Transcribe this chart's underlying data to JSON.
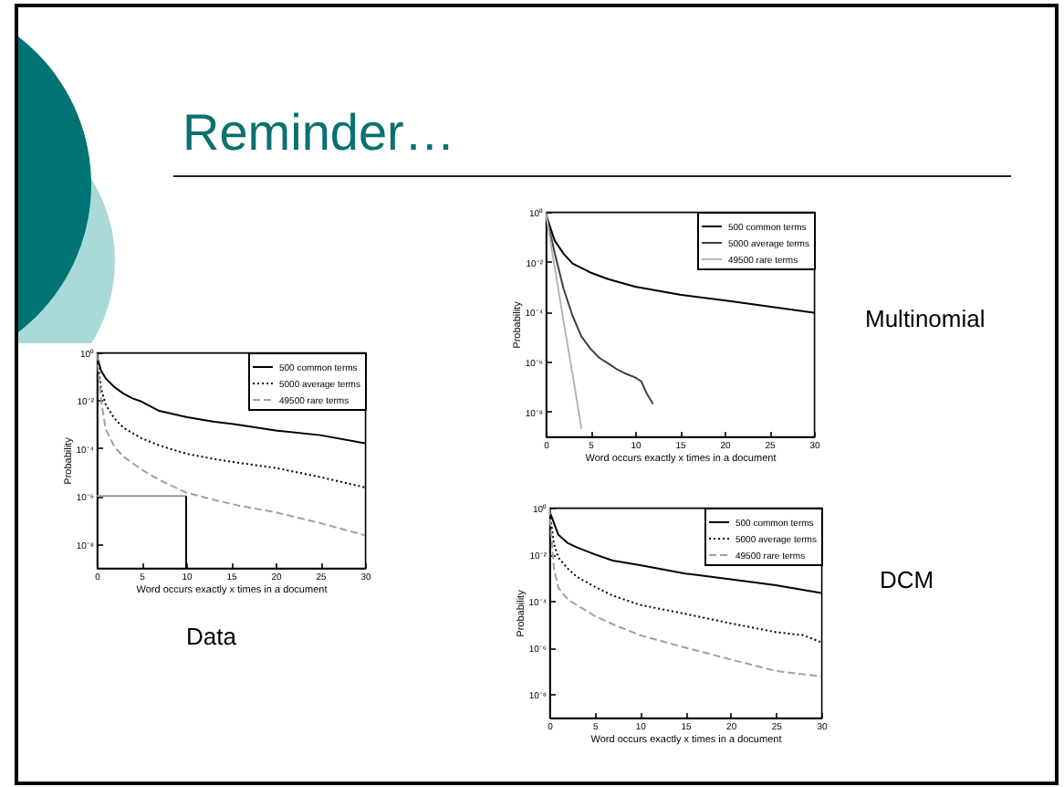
{
  "chart_data": [
    {
      "type": "other",
      "title": "Reminder…"
    },
    {
      "type": "line",
      "title": "Data",
      "xlabel": "Word occurs exactly x times in a document",
      "ylabel": "Probability",
      "log": "y",
      "legend": "top right",
      "xlim": [
        0,
        30
      ],
      "xticks": [
        0,
        5,
        10,
        15,
        20,
        25,
        30
      ],
      "ylim": [
        1e-09,
        1
      ],
      "yticks": [
        {
          "value": 1,
          "label": "10⁰"
        },
        {
          "value": 0.01,
          "label": "10⁻²"
        },
        {
          "value": 0.0001,
          "label": "10⁻⁴"
        },
        {
          "value": 1e-06,
          "label": "10⁻⁶"
        },
        {
          "value": 1e-08,
          "label": "10⁻⁸"
        }
      ],
      "series": [
        {
          "name": "500 common terms",
          "color": "#000000",
          "line_style": "solid",
          "x": [
            0,
            0.5,
            1,
            2,
            3,
            4,
            5,
            7,
            10,
            13,
            16,
            20,
            25,
            30
          ],
          "values": [
            0.74,
            0.17,
            0.083,
            0.035,
            0.019,
            0.012,
            0.0089,
            0.0036,
            0.002,
            0.0013,
            0.00093,
            0.00055,
            0.00035,
            0.00016
          ]
        },
        {
          "name": "5000 average terms",
          "color": "#000000",
          "line_style": "dotted",
          "x": [
            0,
            0.5,
            1,
            2,
            3,
            5,
            7,
            10,
            13,
            16,
            20,
            25,
            30
          ],
          "values": [
            0.85,
            0.029,
            0.0066,
            0.0017,
            0.00071,
            0.00026,
            0.00013,
            5.9e-05,
            3.6e-05,
            2.4e-05,
            1.5e-05,
            6.2e-06,
            2.3e-06
          ]
        },
        {
          "name": "49500 rare terms",
          "color": "#a0a0a0",
          "line_style": "dashed",
          "x": [
            0,
            0.5,
            1,
            2,
            3,
            5,
            7,
            10,
            13,
            16,
            20,
            25,
            30
          ],
          "values": [
            0.89,
            0.0089,
            0.00063,
            0.00011,
            4.4e-05,
            1.3e-05,
            4.7e-06,
            1.4e-06,
            7.1e-07,
            3.9e-07,
            2.1e-07,
            7.4e-08,
            2.3e-08
          ]
        },
        {
          "color": "#999999",
          "line_style": "solid",
          "x": [
            0,
            10
          ],
          "values": [
            1e-06,
            1e-06
          ]
        },
        {
          "color": "#000000",
          "line_style": "solid",
          "x": [
            10,
            10
          ],
          "values": [
            1e-09,
            1e-06
          ]
        }
      ]
    },
    {
      "type": "line",
      "annotations": [
        "Multinomial"
      ],
      "xlabel": "Word occurs exactly x times in a document",
      "ylabel": "Probability",
      "log": "y",
      "legend": "top right",
      "xlim": [
        0,
        30
      ],
      "xticks": [
        0,
        5,
        10,
        15,
        20,
        25,
        30
      ],
      "ylim": [
        1e-09,
        1
      ],
      "yticks": [
        {
          "value": 1,
          "label": "10⁰"
        },
        {
          "value": 0.01,
          "label": "10⁻²"
        },
        {
          "value": 0.0001,
          "label": "10⁻⁴"
        },
        {
          "value": 1e-06,
          "label": "10⁻⁶"
        },
        {
          "value": 1e-08,
          "label": "10⁻⁸"
        }
      ],
      "series": [
        {
          "name": "500 common terms",
          "color": "#000000",
          "line_style": "solid",
          "x": [
            0,
            1,
            2,
            3,
            5,
            7,
            10,
            15,
            20,
            25,
            30
          ],
          "values": [
            0.85,
            0.071,
            0.021,
            0.0085,
            0.0037,
            0.002,
            0.001,
            0.00048,
            0.00028,
            0.00016,
            9.1e-05
          ]
        },
        {
          "name": "5000 average terms",
          "color": "#404040",
          "line_style": "solid",
          "x": [
            0,
            1,
            2,
            3,
            4,
            5,
            6,
            7,
            8,
            9,
            10,
            10.7,
            11.3,
            12
          ],
          "values": [
            0.95,
            0.023,
            0.00083,
            6.9e-05,
            1e-05,
            3.3e-06,
            1.4e-06,
            8.3e-07,
            4.8e-07,
            3.2e-07,
            2.3e-07,
            1.6e-07,
            5.2e-08,
            2e-08
          ]
        },
        {
          "name": "49500 rare terms",
          "color": "#b4b4b4",
          "line_style": "solid",
          "x": [
            0,
            1,
            2,
            3,
            4
          ],
          "values": [
            0.95,
            0.0063,
            4e-05,
            3.2e-07,
            2e-09
          ]
        }
      ]
    },
    {
      "type": "line",
      "annotations": [
        "DCM"
      ],
      "xlabel": "Word occurs exactly x times in a document",
      "ylabel": "Probability",
      "log": "y",
      "legend": "top right",
      "xlim": [
        0,
        30
      ],
      "xticks": [
        0,
        5,
        10,
        15,
        20,
        25,
        30
      ],
      "ylim": [
        1e-09,
        1
      ],
      "yticks": [
        {
          "value": 1,
          "label": "10⁰"
        },
        {
          "value": 0.01,
          "label": "10⁻²"
        },
        {
          "value": 0.0001,
          "label": "10⁻⁴"
        },
        {
          "value": 1e-06,
          "label": "10⁻⁶"
        },
        {
          "value": 1e-08,
          "label": "10⁻⁸"
        }
      ],
      "series": [
        {
          "name": "500 common terms",
          "color": "#000000",
          "line_style": "solid",
          "x": [
            0,
            1,
            2,
            3,
            5,
            7,
            10,
            15,
            20,
            25,
            30
          ],
          "values": [
            0.74,
            0.068,
            0.031,
            0.02,
            0.01,
            0.0054,
            0.0034,
            0.0015,
            0.00085,
            0.00047,
            0.00022
          ]
        },
        {
          "name": "5000 average terms",
          "color": "#000000",
          "line_style": "dotted",
          "x": [
            0,
            0.5,
            1,
            2,
            3,
            5,
            7,
            10,
            15,
            20,
            25,
            28,
            30
          ],
          "values": [
            0.89,
            0.028,
            0.0072,
            0.0025,
            0.0011,
            0.00041,
            0.00017,
            6.8e-05,
            2.8e-05,
            1.1e-05,
            4.6e-06,
            3.4e-06,
            1.7e-06
          ]
        },
        {
          "name": "49500 rare terms",
          "color": "#a0a0a0",
          "line_style": "dashed",
          "x": [
            0,
            0.5,
            1,
            2,
            3,
            5,
            7,
            10,
            15,
            20,
            25,
            30
          ],
          "values": [
            0.95,
            0.0025,
            0.00036,
            0.00012,
            6.8e-05,
            2.3e-05,
            1e-05,
            3.4e-06,
            1e-06,
            3.1e-07,
            1e-07,
            5.8e-08
          ]
        }
      ]
    }
  ]
}
